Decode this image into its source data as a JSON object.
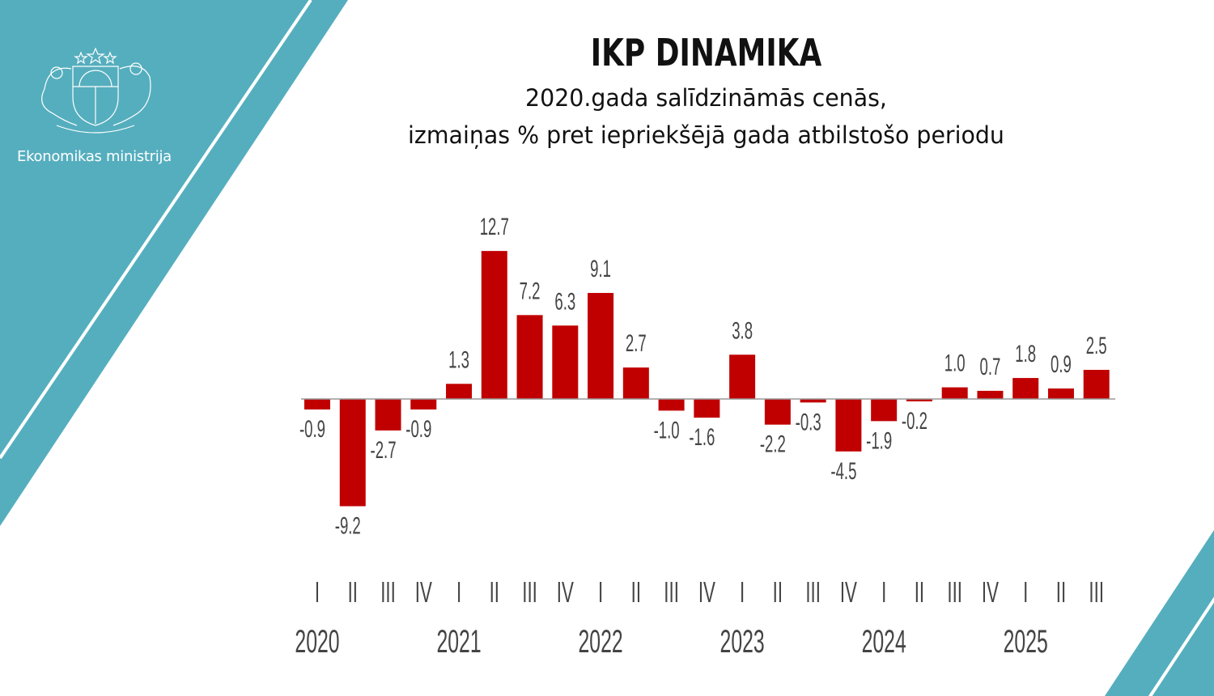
{
  "header": {
    "organization": "Ekonomikas ministrija",
    "title": "IKP DINAMIKA",
    "subtitle_line1": "2020.gada salīdzināmās cenās,",
    "subtitle_line2": "izmaiņas % pret iepriekšējā gada atbilstošo periodu"
  },
  "colors": {
    "accent": "#55aebe",
    "bar": "#c00000",
    "label": "#444444"
  },
  "chart_data": {
    "type": "bar",
    "title": "IKP DINAMIKA",
    "xlabel": "",
    "ylabel": "",
    "categories": [
      "I",
      "II",
      "III",
      "IV",
      "I",
      "II",
      "III",
      "IV",
      "I",
      "II",
      "III",
      "IV",
      "I",
      "II",
      "III",
      "IV",
      "I",
      "II",
      "III",
      "IV",
      "I",
      "II",
      "III"
    ],
    "years": [
      "2020",
      "2021",
      "2022",
      "2023",
      "2024",
      "2025"
    ],
    "values": [
      -0.9,
      -9.2,
      -2.7,
      -0.9,
      1.3,
      12.7,
      7.2,
      6.3,
      9.1,
      2.7,
      -1.0,
      -1.6,
      3.8,
      -2.2,
      -0.3,
      -4.5,
      -1.9,
      -0.2,
      1.0,
      0.7,
      1.8,
      0.9,
      2.5
    ],
    "labels": [
      "-0.9",
      "-9.2",
      "-2.7",
      "-0.9",
      "1.3",
      "12.7",
      "7.2",
      "6.3",
      "9.1",
      "2.7",
      "-1.0",
      "-1.6",
      "3.8",
      "-2.2",
      "-0.3",
      "-4.5",
      "-1.9",
      "-0.2",
      "1.0",
      "0.7",
      "1.8",
      "0.9",
      "2.5"
    ],
    "grid": false,
    "legend": "none"
  }
}
